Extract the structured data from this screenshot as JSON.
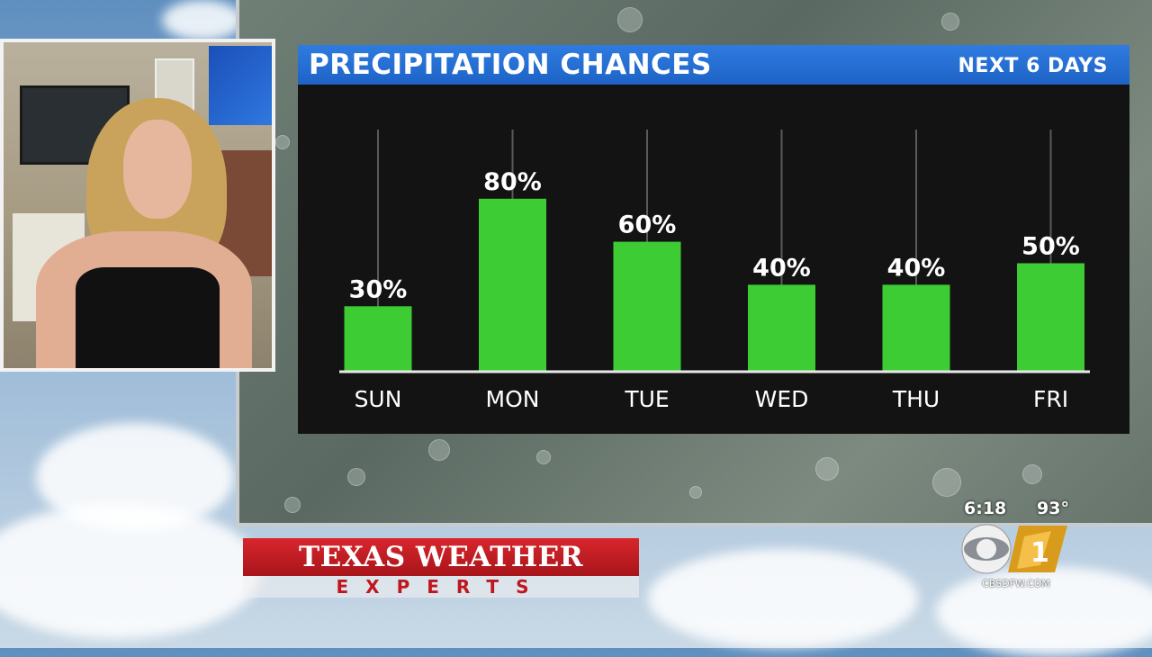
{
  "chart_data": {
    "type": "bar",
    "title": "PRECIPITATION CHANCES",
    "subtitle": "NEXT 6 DAYS",
    "categories": [
      "SUN",
      "MON",
      "TUE",
      "WED",
      "THU",
      "FRI"
    ],
    "values": [
      30,
      80,
      60,
      40,
      40,
      50
    ],
    "value_labels": [
      "30%",
      "80%",
      "60%",
      "40%",
      "40%",
      "50%"
    ],
    "unit": "%",
    "ylim": [
      0,
      100
    ],
    "bar_color": "#3ecc34",
    "background": "#131313",
    "legend": "none",
    "grid": false
  },
  "overlay": {
    "time": "6:18",
    "temperature": "93°",
    "station_url": "CBSDFW.COM",
    "station_logo": "cbs-eye-11-logo"
  },
  "branding": {
    "line1": "TEXAS WEATHER",
    "line2": "EXPERTS",
    "colors": {
      "red": "#c0161d"
    }
  },
  "inset": {
    "description_icon": "presenter-video-feed"
  }
}
